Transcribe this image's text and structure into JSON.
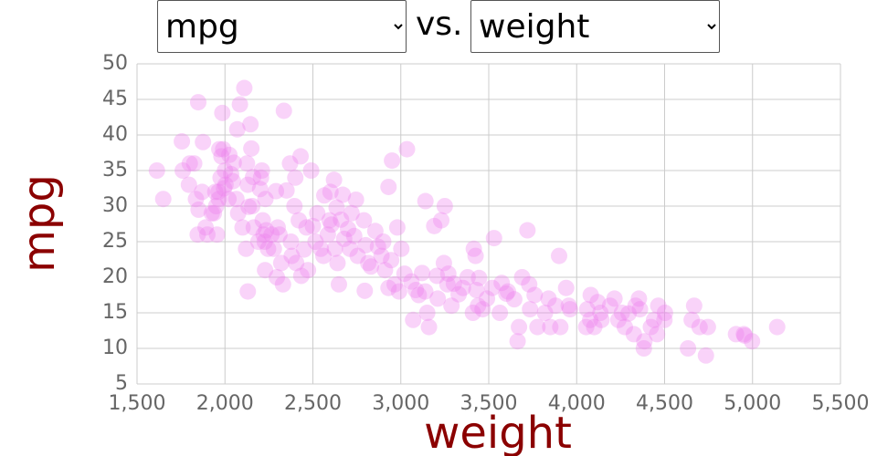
{
  "controls": {
    "y_select": "mpg",
    "separator": "vs.",
    "x_select": "weight"
  },
  "chart_data": {
    "type": "scatter",
    "xlabel": "weight",
    "ylabel": "mpg",
    "color": "#ee82ee",
    "grid": true,
    "xlim": [
      1500,
      5500
    ],
    "ylim": [
      5,
      50
    ],
    "xticks": [
      {
        "value": 1500,
        "label": "1,500"
      },
      {
        "value": 2000,
        "label": "2,000"
      },
      {
        "value": 2500,
        "label": "2,500"
      },
      {
        "value": 3000,
        "label": "3,000"
      },
      {
        "value": 3500,
        "label": "3,500"
      },
      {
        "value": 4000,
        "label": "4,000"
      },
      {
        "value": 4500,
        "label": "4,500"
      },
      {
        "value": 5000,
        "label": "5,000"
      },
      {
        "value": 5500,
        "label": "5,500"
      }
    ],
    "yticks": [
      5,
      10,
      15,
      20,
      25,
      30,
      35,
      40,
      45,
      50
    ],
    "x": [
      1613,
      1649,
      1755,
      1760,
      1795,
      1800,
      1825,
      1835,
      1845,
      1850,
      1848,
      1875,
      1870,
      1890,
      1900,
      1925,
      1937,
      1945,
      1950,
      1955,
      1963,
      1965,
      1968,
      1975,
      1980,
      1985,
      1990,
      1995,
      2000,
      2003,
      2020,
      2025,
      2035,
      2045,
      2050,
      2065,
      2070,
      2075,
      2085,
      2100,
      2110,
      2120,
      2125,
      2130,
      2130,
      2135,
      2145,
      2150,
      2155,
      2160,
      2164,
      2190,
      2200,
      2205,
      2210,
      2215,
      2220,
      2226,
      2228,
      2230,
      2234,
      2245,
      2265,
      2278,
      2290,
      2295,
      2300,
      2310,
      2320,
      2330,
      2335,
      2350,
      2370,
      2375,
      2380,
      2395,
      2400,
      2405,
      2420,
      2430,
      2434,
      2450,
      2464,
      2472,
      2490,
      2500,
      2515,
      2525,
      2545,
      2560,
      2565,
      2585,
      2595,
      2600,
      2605,
      2620,
      2625,
      2635,
      2640,
      2648,
      2660,
      2670,
      2678,
      2700,
      2711,
      2720,
      2735,
      2745,
      2755,
      2790,
      2795,
      2800,
      2815,
      2830,
      2855,
      2870,
      2890,
      2900,
      2910,
      2930,
      2930,
      2945,
      2950,
      2965,
      2980,
      2990,
      3003,
      3021,
      3035,
      3060,
      3070,
      3085,
      3102,
      3121,
      3139,
      3140,
      3150,
      3160,
      3190,
      3205,
      3210,
      3230,
      3245,
      3250,
      3265,
      3270,
      3288,
      3302,
      3329,
      3353,
      3380,
      3410,
      3415,
      3425,
      3430,
      3439,
      3445,
      3465,
      3490,
      3520,
      3530,
      3563,
      3574,
      3600,
      3609,
      3645,
      3664,
      3672,
      3690,
      3720,
      3730,
      3735,
      3761,
      3777,
      3820,
      3840,
      3850,
      3880,
      3900,
      3907,
      3940,
      3955,
      3962,
      4054,
      4060,
      4077,
      4080,
      4100,
      4120,
      4141,
      4135,
      4190,
      4215,
      4237,
      4257,
      4274,
      4295,
      4325,
      4335,
      4354,
      4360,
      4382,
      4385,
      4422,
      4440,
      4457,
      4464,
      4499,
      4502,
      4633,
      4654,
      4668,
      4699,
      4735,
      4746,
      4906,
      4951,
      4955,
      4997,
      5140
    ],
    "values": [
      35,
      31,
      39.1,
      35,
      33,
      36,
      36,
      31,
      26,
      29.5,
      44.6,
      39,
      32,
      27,
      26,
      29,
      29,
      32,
      30,
      26,
      32,
      31,
      38,
      34,
      37,
      43.1,
      38,
      32.5,
      35,
      33,
      31,
      37.2,
      34.5,
      33.5,
      36.1,
      31,
      40.8,
      29,
      44.3,
      27,
      46.6,
      24,
      36,
      18,
      33,
      29.9,
      41.5,
      38.1,
      30,
      34.1,
      27,
      25,
      32.4,
      34,
      35,
      28,
      26,
      25,
      21,
      31,
      26.6,
      24,
      26,
      24,
      32.1,
      20,
      27,
      26,
      22,
      19,
      43.4,
      32.2,
      36,
      25,
      23,
      30,
      34,
      22,
      28,
      37,
      20.2,
      23.9,
      27,
      21,
      35,
      27.2,
      25,
      29,
      24,
      23,
      31.5,
      26,
      28,
      32,
      27.4,
      33.7,
      24,
      29.8,
      22,
      19,
      28.1,
      31.6,
      25.4,
      26.8,
      24,
      29,
      25.8,
      30.9,
      23,
      28,
      18.1,
      24.5,
      22,
      21.5,
      26.5,
      24.3,
      23,
      25,
      21,
      32.7,
      18.5,
      22.4,
      36.4,
      19,
      27,
      18,
      24,
      20.5,
      38,
      19.4,
      14,
      18.2,
      17.5,
      20.6,
      18,
      30.7,
      15,
      13,
      27.2,
      20.2,
      17,
      28,
      22,
      30,
      19,
      20.5,
      16,
      19.1,
      17.6,
      18.5,
      20,
      15,
      24,
      23,
      18.2,
      16,
      19.9,
      15.5,
      17,
      18.5,
      25.5,
      15,
      19.2,
      17.7,
      18,
      16.9,
      11,
      13,
      20,
      26.6,
      19,
      15.5,
      17.5,
      13,
      15,
      17,
      13,
      16,
      23,
      13,
      18.5,
      16,
      15.5,
      13,
      15.5,
      14,
      17.5,
      13,
      16.5,
      14,
      15,
      16,
      17,
      14,
      15,
      13,
      14.9,
      12,
      16,
      17,
      15.5,
      10,
      11,
      13,
      14,
      12,
      16,
      14,
      15,
      10,
      14,
      16,
      13,
      9,
      13,
      12,
      12,
      11.8,
      11,
      13
    ]
  }
}
